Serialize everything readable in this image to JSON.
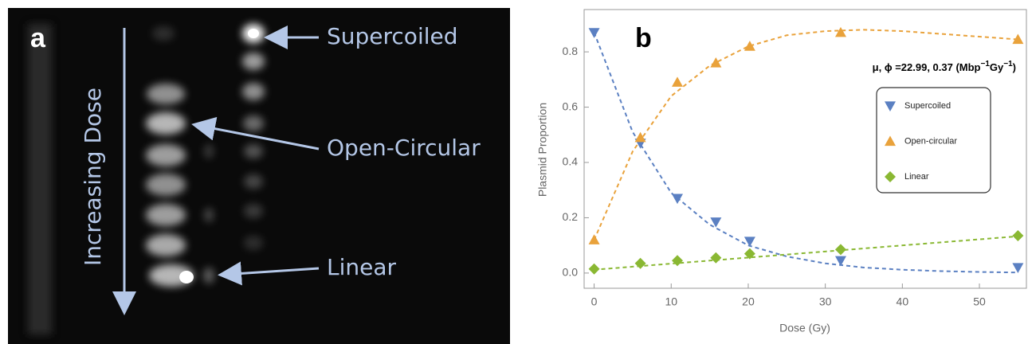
{
  "panel_a": {
    "label": "a",
    "axis_label": "Increasing Dose",
    "bands": [
      "Supercoiled",
      "Open-Circular",
      "Linear"
    ]
  },
  "chart_data": {
    "type": "scatter",
    "panel_label": "b",
    "annotation": [
      "μ, ϕ =22.99, 0.37 (Mbp",
      "−1",
      "Gy",
      "−1",
      ")"
    ],
    "x_label": "Dose (Gy)",
    "y_label": "Plasmid Proportion",
    "x": [
      0,
      6,
      10.8,
      15.8,
      20.2,
      32,
      55
    ],
    "series": [
      {
        "name": "Supercoiled",
        "color": "#5b80c2",
        "marker": "triangle-down",
        "values": [
          0.87,
          0.47,
          0.27,
          0.185,
          0.115,
          0.045,
          0.02
        ],
        "fit": {
          "x": [
            0,
            5,
            10,
            15,
            20,
            25,
            30,
            35,
            40,
            45,
            50,
            55
          ],
          "values": [
            0.87,
            0.51,
            0.29,
            0.175,
            0.1,
            0.06,
            0.035,
            0.02,
            0.012,
            0.007,
            0.004,
            0.002
          ]
        }
      },
      {
        "name": "Open-circular",
        "color": "#e9a23b",
        "marker": "triangle-up",
        "values": [
          0.12,
          0.49,
          0.69,
          0.76,
          0.82,
          0.87,
          0.845
        ],
        "fit": {
          "x": [
            0,
            5,
            10,
            15,
            20,
            25,
            30,
            35,
            40,
            45,
            50,
            55
          ],
          "values": [
            0.12,
            0.44,
            0.64,
            0.75,
            0.82,
            0.86,
            0.875,
            0.88,
            0.875,
            0.865,
            0.855,
            0.845
          ]
        }
      },
      {
        "name": "Linear",
        "color": "#8ab833",
        "marker": "diamond",
        "values": [
          0.015,
          0.035,
          0.045,
          0.055,
          0.07,
          0.085,
          0.135
        ],
        "fit": {
          "x": [
            0,
            5,
            10,
            15,
            20,
            25,
            30,
            35,
            40,
            45,
            50,
            55
          ],
          "values": [
            0.012,
            0.023,
            0.034,
            0.045,
            0.056,
            0.067,
            0.078,
            0.089,
            0.1,
            0.111,
            0.122,
            0.133
          ]
        }
      }
    ],
    "xlim": [
      -1.3,
      56.1
    ],
    "ylim": [
      -0.055,
      0.953
    ],
    "xticks": [
      0,
      10,
      20,
      30,
      40,
      50
    ],
    "yticks": [
      {
        "value": 0,
        "label": "0.0"
      },
      0.2,
      0.4,
      0.6,
      0.8
    ],
    "legend": "right"
  }
}
